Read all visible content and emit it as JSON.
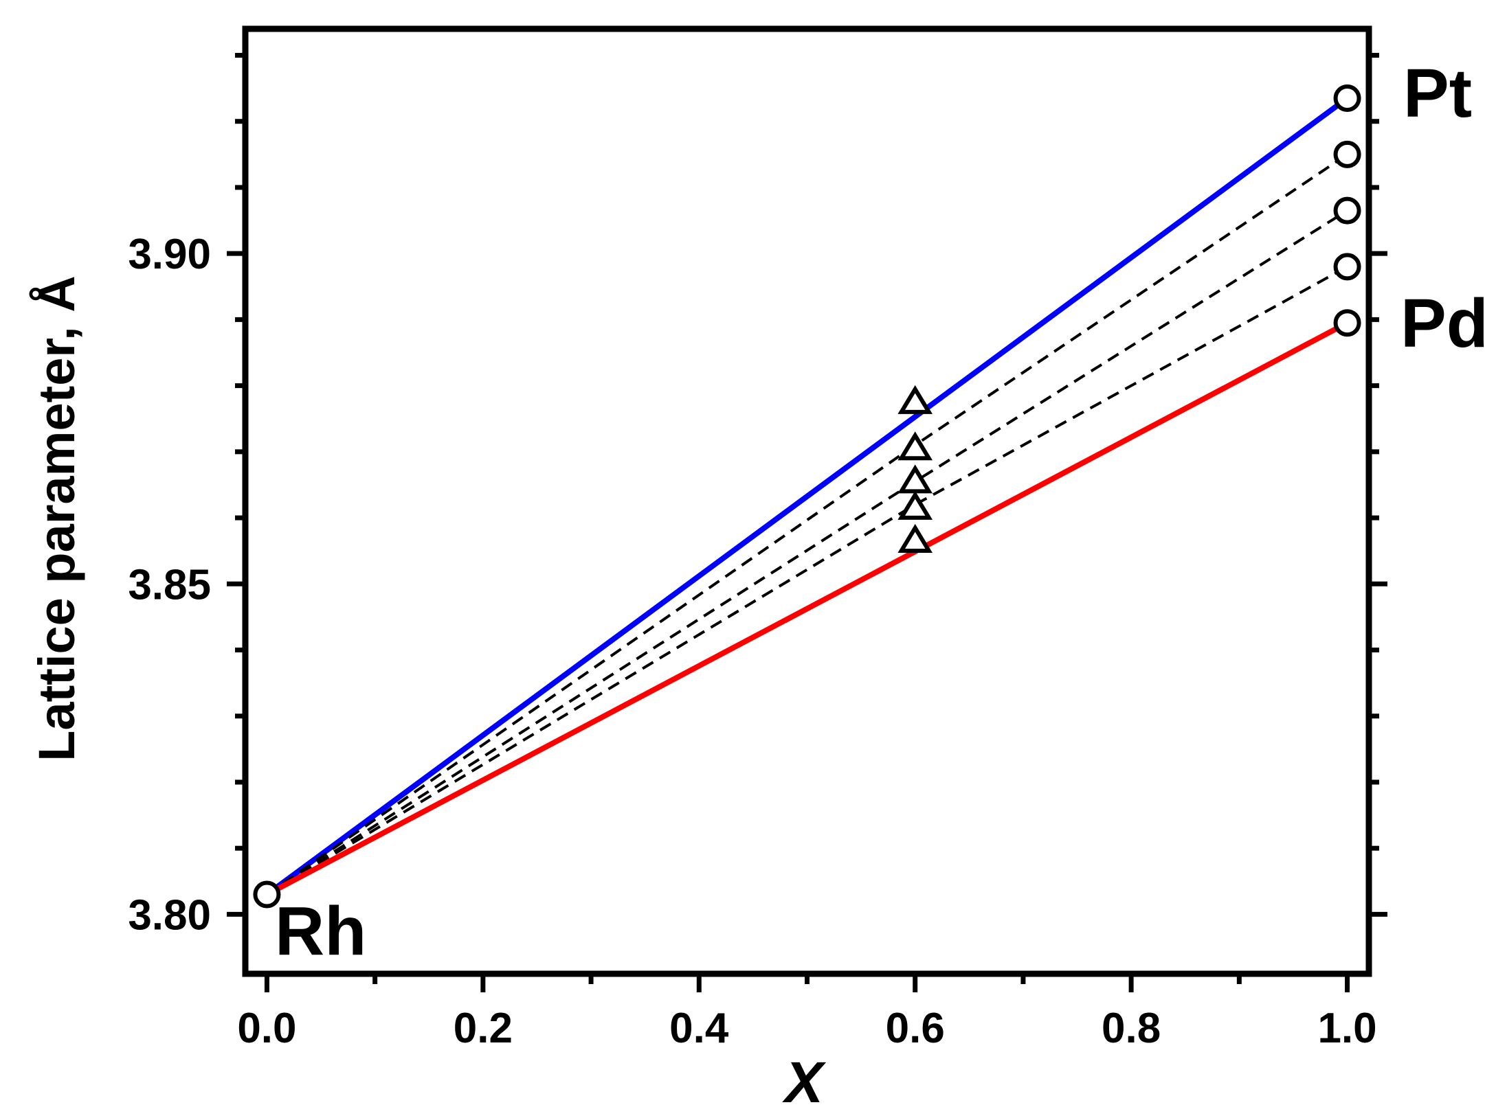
{
  "chart_data": {
    "type": "line",
    "title": "",
    "xlabel": "X",
    "ylabel": "Lattice parameter, Å",
    "xlim": [
      -0.02,
      1.02
    ],
    "ylim": [
      3.791,
      3.934
    ],
    "xticks": [
      0.0,
      0.2,
      0.4,
      0.6,
      0.8,
      1.0
    ],
    "xtick_labels": [
      "0.0",
      "0.2",
      "0.4",
      "0.6",
      "0.8",
      "1.0"
    ],
    "xminor": [
      0.1,
      0.3,
      0.5,
      0.7,
      0.9
    ],
    "yticks": [
      3.8,
      3.85,
      3.9
    ],
    "ytick_labels": [
      "3.80",
      "3.85",
      "3.90"
    ],
    "yminor": [
      3.81,
      3.82,
      3.83,
      3.84,
      3.86,
      3.87,
      3.88,
      3.89,
      3.91,
      3.92,
      3.93
    ],
    "grid": false,
    "series": [
      {
        "color": "#0000ff",
        "style": "solid",
        "x": [
          0.0,
          1.0
        ],
        "y": [
          3.803,
          3.9235
        ]
      },
      {
        "color": "#000000",
        "style": "dashed",
        "x": [
          0.0,
          0.6,
          1.0
        ],
        "y": [
          3.803,
          3.871,
          3.915
        ]
      },
      {
        "color": "#000000",
        "style": "dashed",
        "x": [
          0.0,
          0.6,
          1.0
        ],
        "y": [
          3.803,
          3.8655,
          3.9065
        ]
      },
      {
        "color": "#000000",
        "style": "dashed",
        "x": [
          0.0,
          0.6,
          1.0
        ],
        "y": [
          3.803,
          3.862,
          3.898
        ]
      },
      {
        "color": "#ff0000",
        "style": "solid",
        "x": [
          0.0,
          1.0
        ],
        "y": [
          3.803,
          3.8895
        ]
      }
    ],
    "circle_markers": [
      {
        "x": 0.0,
        "y": 3.803
      },
      {
        "x": 1.0,
        "y": 3.9235
      },
      {
        "x": 1.0,
        "y": 3.915
      },
      {
        "x": 1.0,
        "y": 3.9065
      },
      {
        "x": 1.0,
        "y": 3.898
      },
      {
        "x": 1.0,
        "y": 3.8895
      }
    ],
    "triangle_markers": [
      {
        "x": 0.6,
        "y": 3.8775
      },
      {
        "x": 0.6,
        "y": 3.8705
      },
      {
        "x": 0.6,
        "y": 3.8655
      },
      {
        "x": 0.6,
        "y": 3.8615
      },
      {
        "x": 0.6,
        "y": 3.8565
      }
    ],
    "annotations": [
      {
        "name": "label-pt",
        "text": "Pt"
      },
      {
        "name": "label-pd",
        "text": "Pd"
      },
      {
        "name": "label-rh",
        "text": "Rh"
      }
    ]
  }
}
